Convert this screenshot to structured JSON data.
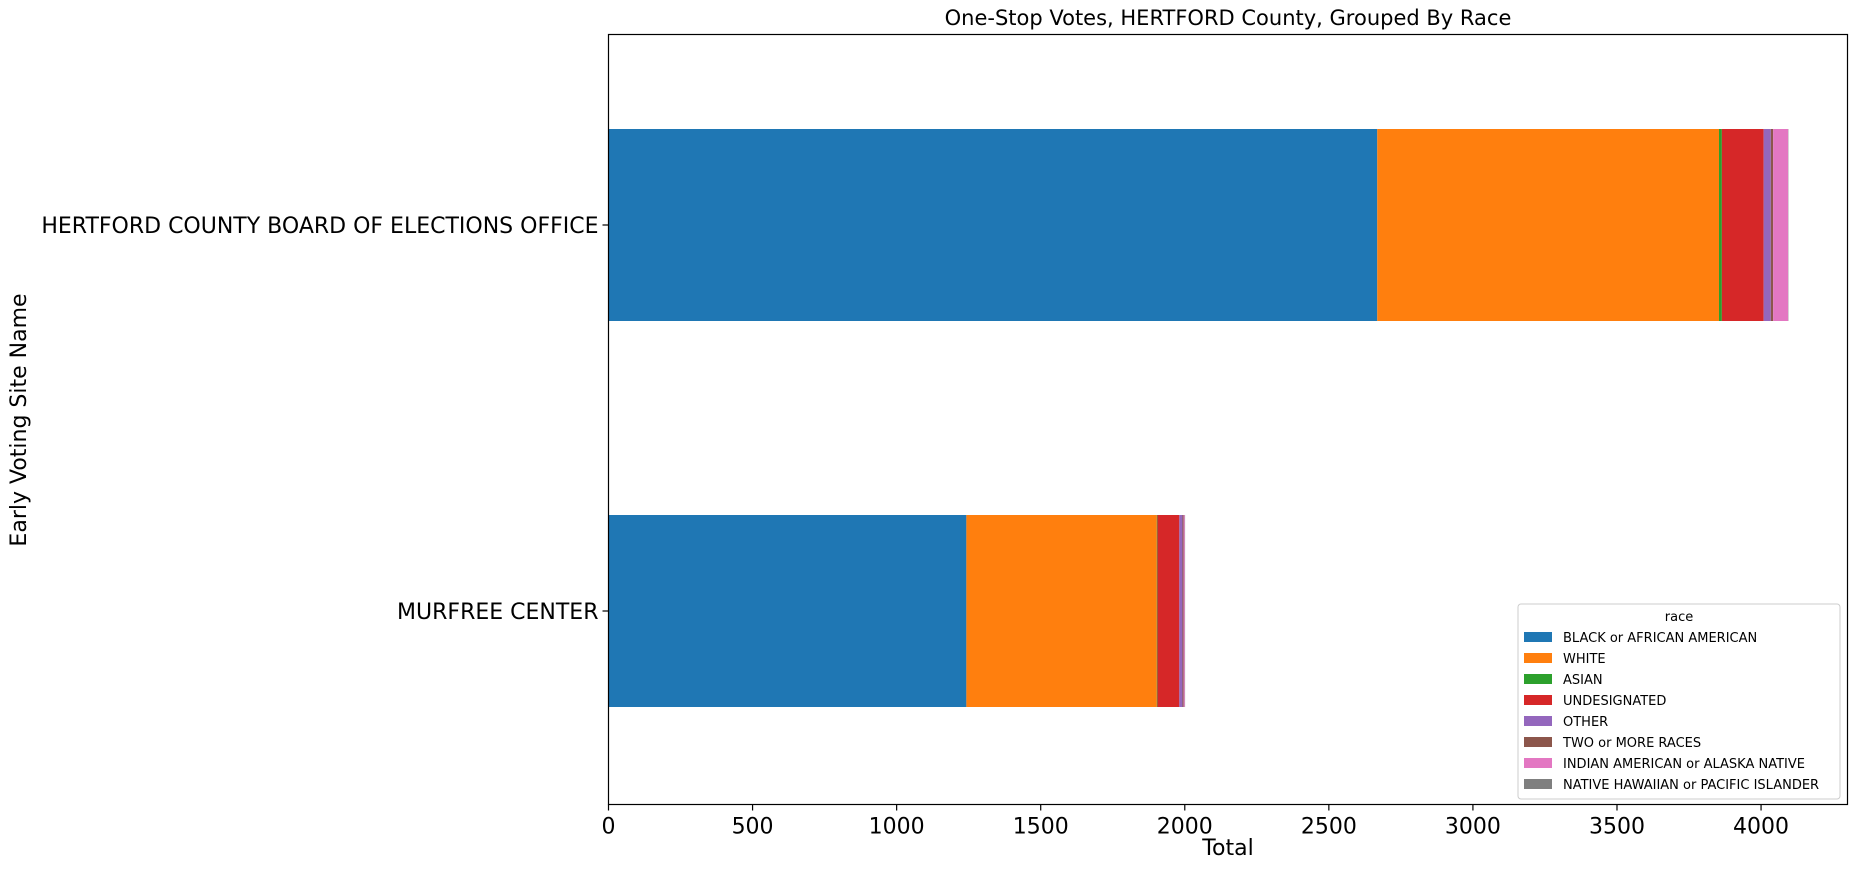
{
  "chart_data": {
    "type": "bar",
    "orientation": "horizontal",
    "stacked": true,
    "title": "One-Stop Votes, HERTFORD County, Grouped By Race",
    "xlabel": "Total",
    "ylabel": "Early Voting Site Name",
    "xlim": [
      0,
      4300
    ],
    "xticks": [
      0,
      500,
      1000,
      1500,
      2000,
      2500,
      3000,
      3500,
      4000
    ],
    "categories": [
      "HERTFORD COUNTY BOARD OF ELECTIONS OFFICE",
      "MURFREE CENTER"
    ],
    "legend_title": "race",
    "legend_position": "lower right",
    "grid": false,
    "series": [
      {
        "name": "BLACK or AFRICAN AMERICAN",
        "color": "#1f77b4",
        "values": [
          2668,
          1242
        ]
      },
      {
        "name": "WHITE",
        "color": "#ff7f0e",
        "values": [
          1186,
          661
        ]
      },
      {
        "name": "ASIAN",
        "color": "#2ca02c",
        "values": [
          10,
          2
        ]
      },
      {
        "name": "UNDESIGNATED",
        "color": "#d62728",
        "values": [
          145,
          76
        ]
      },
      {
        "name": "OTHER",
        "color": "#9467bd",
        "values": [
          25,
          11
        ]
      },
      {
        "name": "TWO or MORE RACES",
        "color": "#8c564b",
        "values": [
          8,
          4
        ]
      },
      {
        "name": "INDIAN AMERICAN or ALASKA NATIVE",
        "color": "#e377c2",
        "values": [
          52,
          4
        ]
      },
      {
        "name": "NATIVE HAWAIIAN or PACIFIC ISLANDER",
        "color": "#7f7f7f",
        "values": [
          1,
          1
        ]
      }
    ]
  }
}
